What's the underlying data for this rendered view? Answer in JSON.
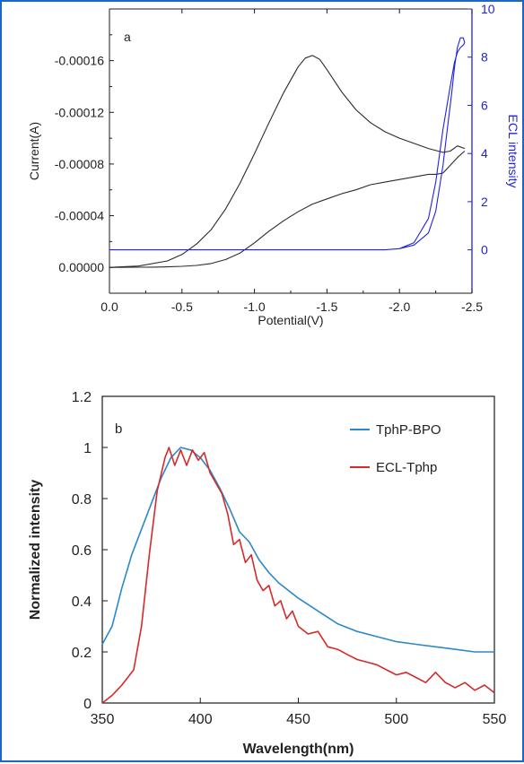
{
  "chart_data": [
    {
      "panel_label": "a",
      "type": "line",
      "xlabel": "Potential(V)",
      "ylabel": "Current(A)",
      "y2label": "ECL intensity",
      "xlim": [
        0.0,
        -2.5
      ],
      "ylim": [
        2e-05,
        -0.0002
      ],
      "y2lim": [
        -1.8,
        10
      ],
      "xticks": [
        "0.0",
        "-0.5",
        "-1.0",
        "-1.5",
        "-2.0",
        "-2.5"
      ],
      "yticks": [
        "0.00000",
        "-0.00004",
        "-0.00008",
        "-0.00012",
        "-0.00016"
      ],
      "y2ticks": [
        "0",
        "2",
        "4",
        "6",
        "8",
        "10"
      ],
      "colors": {
        "current": "#2b2b2b",
        "ecl": "#2222dd",
        "axis": "#1a1a1a",
        "y2axis": "#2222dd"
      },
      "series": [
        {
          "axis": "left",
          "x": [
            0.0,
            -0.2,
            -0.4,
            -0.5,
            -0.6,
            -0.7,
            -0.8,
            -0.9,
            -1.0,
            -1.1,
            -1.2,
            -1.3,
            -1.35,
            -1.4,
            -1.45,
            -1.5,
            -1.6,
            -1.7,
            -1.8,
            -1.9,
            -2.0,
            -2.1,
            -2.2,
            -2.3,
            -2.35,
            -2.4,
            -2.45
          ],
          "y": [
            0.0,
            -1e-06,
            -5e-06,
            -1e-05,
            -1.8e-05,
            -2.9e-05,
            -4.5e-05,
            -6.5e-05,
            -8.8e-05,
            -0.000112,
            -0.000135,
            -0.000155,
            -0.000162,
            -0.000164,
            -0.000161,
            -0.000153,
            -0.000136,
            -0.000122,
            -0.000112,
            -0.000105,
            -0.0001,
            -9.6e-05,
            -9.2e-05,
            -8.9e-05,
            -9e-05,
            -9.4e-05,
            -9.2e-05
          ]
        },
        {
          "axis": "left",
          "x": [
            -2.45,
            -2.4,
            -2.35,
            -2.3,
            -2.25,
            -2.2,
            -2.1,
            -2.0,
            -1.9,
            -1.8,
            -1.7,
            -1.6,
            -1.5,
            -1.4,
            -1.3,
            -1.2,
            -1.1,
            -1.0,
            -0.9,
            -0.8,
            -0.7,
            -0.6,
            -0.5,
            -0.4,
            -0.3,
            -0.2,
            0.0
          ],
          "y": [
            -9e-05,
            -8.5e-05,
            -7.9e-05,
            -7.3e-05,
            -7.2e-05,
            -7.2e-05,
            -7e-05,
            -6.8e-05,
            -6.6e-05,
            -6.4e-05,
            -6e-05,
            -5.7e-05,
            -5.3e-05,
            -4.9e-05,
            -4.3e-05,
            -3.6e-05,
            -2.8e-05,
            -1.9e-05,
            -1.1e-05,
            -6e-06,
            -3e-06,
            -1.5e-06,
            -8e-07,
            -4e-07,
            -2e-07,
            -1e-07,
            0.0
          ]
        },
        {
          "axis": "right",
          "x": [
            0.0,
            -1.9,
            -2.0,
            -2.1,
            -2.2,
            -2.25,
            -2.3,
            -2.33,
            -2.36,
            -2.38,
            -2.4,
            -2.42,
            -2.44,
            -2.45,
            -2.44,
            -2.42,
            -2.4,
            -2.38,
            -2.35,
            -2.3,
            -2.25,
            -2.2,
            -2.1,
            -2.0,
            -1.9,
            0.0
          ],
          "y": [
            0.0,
            0.0,
            0.05,
            0.2,
            0.7,
            1.6,
            3.5,
            5.0,
            6.5,
            7.6,
            8.4,
            8.8,
            8.8,
            8.6,
            8.5,
            8.4,
            8.2,
            7.8,
            6.8,
            5.0,
            2.8,
            1.3,
            0.3,
            0.05,
            0.0,
            0.0
          ]
        }
      ]
    },
    {
      "panel_label": "b",
      "type": "line",
      "xlabel": "Wavelength(nm)",
      "ylabel": "Normalized intensity",
      "xlim": [
        350,
        550
      ],
      "ylim": [
        0,
        1.2
      ],
      "xticks": [
        "350",
        "400",
        "450",
        "500",
        "550"
      ],
      "yticks": [
        "0",
        "0.2",
        "0.4",
        "0.6",
        "0.8",
        "1",
        "1.2"
      ],
      "legend_position": "top-right",
      "colors": {
        "axis": "#1a1a1a"
      },
      "series": [
        {
          "name": "TphP-BPO",
          "color": "#2c88c8",
          "x": [
            350,
            355,
            360,
            365,
            370,
            375,
            380,
            385,
            390,
            395,
            400,
            405,
            410,
            415,
            420,
            425,
            430,
            435,
            440,
            450,
            460,
            470,
            480,
            490,
            500,
            510,
            520,
            530,
            540,
            550
          ],
          "y": [
            0.23,
            0.3,
            0.45,
            0.58,
            0.68,
            0.78,
            0.88,
            0.96,
            1.0,
            0.99,
            0.96,
            0.91,
            0.84,
            0.76,
            0.67,
            0.63,
            0.56,
            0.51,
            0.47,
            0.41,
            0.36,
            0.31,
            0.28,
            0.26,
            0.24,
            0.23,
            0.22,
            0.21,
            0.2,
            0.2
          ]
        },
        {
          "name": "ECL-Tphp",
          "color": "#d42a2a",
          "x": [
            350,
            355,
            360,
            363,
            366,
            370,
            374,
            378,
            382,
            384,
            387,
            390,
            393,
            396,
            399,
            402,
            405,
            408,
            411,
            414,
            417,
            420,
            423,
            426,
            429,
            432,
            435,
            438,
            441,
            444,
            447,
            450,
            455,
            460,
            465,
            470,
            475,
            480,
            485,
            490,
            495,
            500,
            505,
            510,
            515,
            520,
            525,
            530,
            535,
            540,
            545,
            550
          ],
          "y": [
            0.0,
            0.03,
            0.07,
            0.1,
            0.13,
            0.3,
            0.58,
            0.83,
            0.96,
            1.0,
            0.93,
            0.99,
            0.93,
            0.99,
            0.95,
            0.98,
            0.9,
            0.86,
            0.82,
            0.74,
            0.62,
            0.64,
            0.55,
            0.58,
            0.48,
            0.44,
            0.46,
            0.38,
            0.4,
            0.33,
            0.36,
            0.3,
            0.27,
            0.28,
            0.22,
            0.21,
            0.19,
            0.17,
            0.16,
            0.15,
            0.13,
            0.11,
            0.12,
            0.1,
            0.08,
            0.12,
            0.08,
            0.06,
            0.08,
            0.05,
            0.07,
            0.04
          ]
        }
      ]
    }
  ]
}
